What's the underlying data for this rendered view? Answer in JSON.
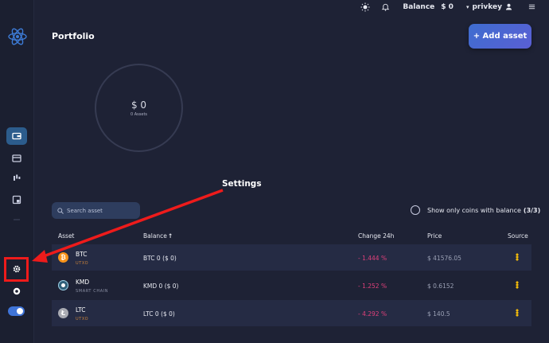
{
  "header": {
    "balance_label": "Balance",
    "balance_value": "$ 0",
    "user_name": "privkey"
  },
  "page": {
    "title": "Portfolio",
    "add_asset_label": "+ Add asset"
  },
  "summary": {
    "total": "$ 0",
    "assets_count": "0 Assets"
  },
  "search": {
    "placeholder": "Search asset"
  },
  "filter": {
    "label": "Show only coins with balance",
    "count": "(3/3)"
  },
  "table": {
    "headers": {
      "asset": "Asset",
      "balance": "Balance",
      "balance_sort": "↑",
      "change": "Change 24h",
      "price": "Price",
      "source": "Source"
    },
    "rows": [
      {
        "symbol": "BTC",
        "chain": "UTXO",
        "balance": "BTC 0 ($ 0)",
        "change": "- 1.444 %",
        "price": "$ 41576.05",
        "icon": "bitcoin-icon",
        "icon_color": "#f7931a",
        "chain_color": "#c9823b"
      },
      {
        "symbol": "KMD",
        "chain": "SMART CHAIN",
        "balance": "KMD 0 ($ 0)",
        "change": "- 1.252 %",
        "price": "$ 0.6152",
        "icon": "komodo-icon",
        "icon_color": "#2f5f79",
        "chain_color": "#8a8fa3"
      },
      {
        "symbol": "LTC",
        "chain": "UTXO",
        "balance": "LTC 0 ($ 0)",
        "change": "- 4.292 %",
        "price": "$ 140.5",
        "icon": "litecoin-icon",
        "icon_color": "#a9abb3",
        "chain_color": "#c9823b"
      }
    ]
  },
  "annotation": {
    "label": "Settings"
  },
  "colors": {
    "background": "#1e2235",
    "sidebar": "#1b1f30",
    "accent": "#3e6dcf",
    "negative": "#e0407a",
    "annotation": "#ee1b1b"
  }
}
